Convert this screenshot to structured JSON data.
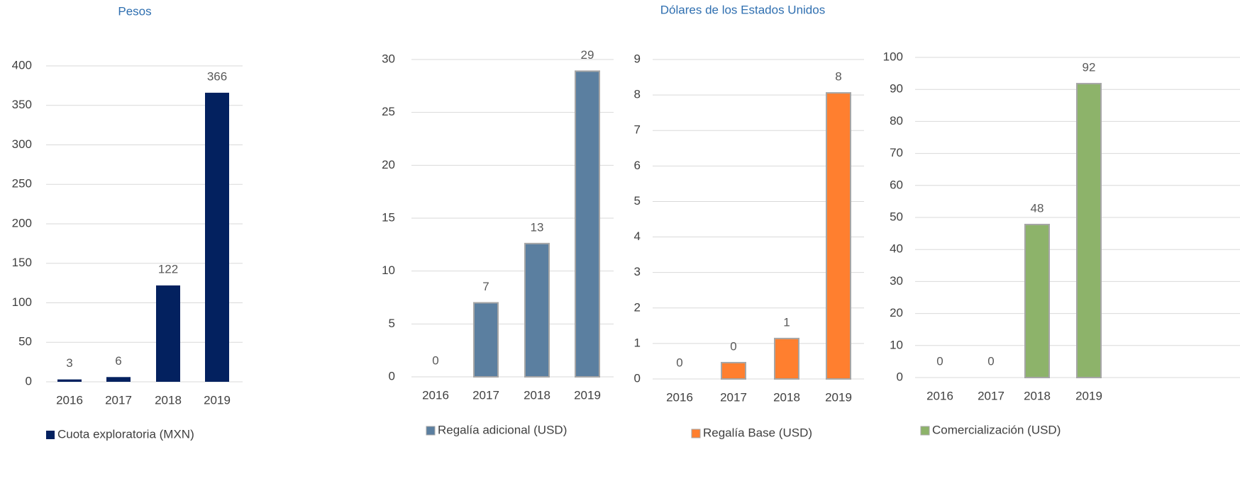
{
  "headings": {
    "left": "Pesos",
    "right": "Dólares de los Estados Unidos"
  },
  "chart_data": [
    {
      "type": "bar",
      "categories": [
        "2016",
        "2017",
        "2018",
        "2019"
      ],
      "series": [
        {
          "name": "Cuota exploratoria (MXN)",
          "color": "#03215f",
          "values": [
            3,
            6,
            122,
            366
          ]
        }
      ],
      "ylim": [
        0,
        400
      ],
      "yticks": [
        0,
        50,
        100,
        150,
        200,
        250,
        300,
        350,
        400
      ],
      "grid": true
    },
    {
      "type": "bar",
      "categories": [
        "2016",
        "2017",
        "2018",
        "2019"
      ],
      "series": [
        {
          "name": "Regalía adicional (USD)",
          "color": "#5b7fa0",
          "values": [
            0,
            7,
            12.6,
            28.9
          ],
          "value_labels": [
            "0",
            "7",
            "13",
            "29"
          ]
        }
      ],
      "ylim": [
        0,
        30
      ],
      "yticks": [
        0,
        5,
        10,
        15,
        20,
        25,
        30
      ],
      "grid": true
    },
    {
      "type": "bar",
      "categories": [
        "2016",
        "2017",
        "2018",
        "2019"
      ],
      "series": [
        {
          "name": "Regalía Base (USD)",
          "color": "#ff7f2f",
          "values": [
            0,
            0.46,
            1.14,
            8.06
          ],
          "value_labels": [
            "0",
            "0",
            "1",
            "8"
          ]
        }
      ],
      "ylim": [
        0,
        9
      ],
      "yticks": [
        0,
        1,
        2,
        3,
        4,
        5,
        6,
        7,
        8,
        9
      ],
      "grid": true
    },
    {
      "type": "bar",
      "categories": [
        "2016",
        "2017",
        "2018",
        "2019"
      ],
      "series": [
        {
          "name": "Comercialización  (USD)",
          "color": "#8db36a",
          "values": [
            0,
            0,
            47.8,
            91.8
          ],
          "value_labels": [
            "0",
            "0",
            "48",
            "92"
          ]
        }
      ],
      "ylim": [
        0,
        100
      ],
      "yticks": [
        0,
        10,
        20,
        30,
        40,
        50,
        60,
        70,
        80,
        90,
        100
      ],
      "grid": true
    }
  ]
}
